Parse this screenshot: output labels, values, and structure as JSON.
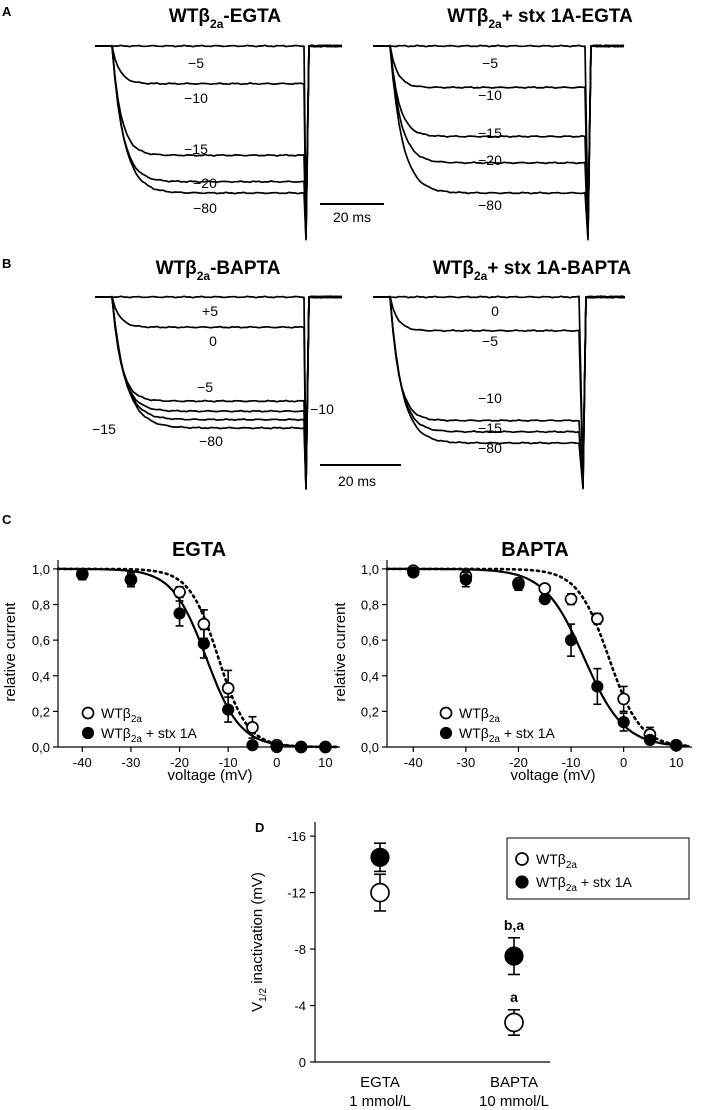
{
  "colors": {
    "ink": "#000000",
    "background": "#ffffff",
    "open_marker": "#ffffff"
  },
  "panels": {
    "A": {
      "letter": "A",
      "scale_bar_label": "20 ms",
      "traces": [
        {
          "title_main": "WTβ",
          "title_sub": "2a",
          "title_rest": "-EGTA",
          "levels": [
            {
              "label": "−5",
              "value": 0.0
            },
            {
              "label": "−10",
              "value": 0.2
            },
            {
              "label": "−15",
              "value": 0.58
            },
            {
              "label": "−20",
              "value": 0.72
            },
            {
              "label": "−80",
              "value": 0.78
            }
          ]
        },
        {
          "title_main": "WTβ",
          "title_sub": "2a",
          "title_rest": "+ stx 1A-EGTA",
          "levels": [
            {
              "label": "−5",
              "value": 0.0
            },
            {
              "label": "−10",
              "value": 0.22
            },
            {
              "label": "−15",
              "value": 0.48
            },
            {
              "label": "−20",
              "value": 0.62
            },
            {
              "label": "−80",
              "value": 0.78
            }
          ]
        }
      ]
    },
    "B": {
      "letter": "B",
      "scale_bar_label": "20 ms",
      "traces": [
        {
          "title_main": "WTβ",
          "title_sub": "2a",
          "title_rest": "-BAPTA",
          "levels": [
            {
              "label": "+5",
              "value": 0.0
            },
            {
              "label": "0",
              "value": 0.18
            },
            {
              "label": "−5",
              "value": 0.62
            },
            {
              "label": "−10",
              "value": 0.68
            },
            {
              "label": "−15",
              "value": 0.73
            },
            {
              "label": "−80",
              "value": 0.78
            }
          ]
        },
        {
          "title_main": "WTβ",
          "title_sub": "2a",
          "title_rest": "+ stx 1A-BAPTA",
          "levels": [
            {
              "label": "0",
              "value": 0.0
            },
            {
              "label": "−5",
              "value": 0.18
            },
            {
              "label": "−10",
              "value": 0.66
            },
            {
              "label": "−15",
              "value": 0.72
            },
            {
              "label": "−80",
              "value": 0.78
            }
          ]
        }
      ]
    },
    "C": {
      "letter": "C"
    },
    "D": {
      "letter": "D"
    }
  },
  "chart_data": [
    {
      "type": "scatter",
      "title": "EGTA",
      "xlabel": "voltage (mV)",
      "ylabel": "relative current",
      "xlim": [
        -45,
        13
      ],
      "ylim": [
        0,
        1.05
      ],
      "x_ticks": [
        -40,
        -30,
        -20,
        -10,
        0,
        10
      ],
      "y_ticks": [
        0,
        0.2,
        0.4,
        0.6,
        0.8,
        1.0
      ],
      "y_tick_labels": [
        "0,0",
        "0,2",
        "0,4",
        "0,6",
        "0,8",
        "1,0"
      ],
      "legend": [
        {
          "marker": "open",
          "text_main": "WTβ",
          "text_sub": "2a",
          "text_rest": ""
        },
        {
          "marker": "filled",
          "text_main": "WTβ",
          "text_sub": "2a",
          "text_rest": " + stx 1A"
        }
      ],
      "legend_position": "bottom-left",
      "series": [
        {
          "marker": "open",
          "fit": "dotted",
          "v_half": -12.0,
          "slope": 3.0,
          "x": [
            -40,
            -30,
            -20,
            -15,
            -10,
            -5,
            0,
            5,
            10
          ],
          "y": [
            0.97,
            0.94,
            0.87,
            0.69,
            0.33,
            0.11,
            0.01,
            0.0,
            0.0
          ],
          "err": [
            0.03,
            0.03,
            0.03,
            0.08,
            0.1,
            0.06,
            0.02,
            0.0,
            0.0
          ]
        },
        {
          "marker": "filled",
          "fit": "solid",
          "v_half": -14.5,
          "slope": 3.5,
          "x": [
            -40,
            -30,
            -20,
            -15,
            -10,
            -5,
            0,
            5,
            10
          ],
          "y": [
            0.97,
            0.94,
            0.75,
            0.58,
            0.21,
            0.01,
            0.0,
            0.0,
            0.0
          ],
          "err": [
            0.03,
            0.04,
            0.07,
            0.08,
            0.07,
            0.01,
            0.0,
            0.0,
            0.0
          ]
        }
      ]
    },
    {
      "type": "scatter",
      "title": "BAPTA",
      "xlabel": "voltage (mV)",
      "ylabel": "relative current",
      "xlim": [
        -45,
        13
      ],
      "ylim": [
        0,
        1.05
      ],
      "x_ticks": [
        -40,
        -30,
        -20,
        -10,
        0,
        10
      ],
      "y_ticks": [
        0,
        0.2,
        0.4,
        0.6,
        0.8,
        1.0
      ],
      "y_tick_labels": [
        "0,0",
        "0,2",
        "0,4",
        "0,6",
        "0,8",
        "1,0"
      ],
      "legend": [
        {
          "marker": "open",
          "text_main": "WTβ",
          "text_sub": "2a",
          "text_rest": ""
        },
        {
          "marker": "filled",
          "text_main": "WTβ",
          "text_sub": "2a",
          "text_rest": " + stx 1A"
        }
      ],
      "legend_position": "bottom-left",
      "series": [
        {
          "marker": "open",
          "fit": "dotted",
          "v_half": -2.8,
          "slope": 3.0,
          "x": [
            -40,
            -30,
            -20,
            -15,
            -10,
            -5,
            0,
            5,
            10
          ],
          "y": [
            0.99,
            0.96,
            0.92,
            0.89,
            0.83,
            0.72,
            0.27,
            0.07,
            0.01
          ],
          "err": [
            0.02,
            0.03,
            0.02,
            0.02,
            0.03,
            0.03,
            0.07,
            0.04,
            0.01
          ]
        },
        {
          "marker": "filled",
          "fit": "solid",
          "v_half": -7.5,
          "slope": 3.8,
          "x": [
            -40,
            -30,
            -20,
            -15,
            -10,
            -5,
            0,
            5,
            10
          ],
          "y": [
            0.98,
            0.94,
            0.91,
            0.83,
            0.6,
            0.34,
            0.14,
            0.04,
            0.01
          ],
          "err": [
            0.02,
            0.04,
            0.03,
            0.02,
            0.09,
            0.1,
            0.05,
            0.02,
            0.01
          ]
        }
      ]
    },
    {
      "type": "scatter",
      "title": "",
      "ylabel_main": "V",
      "ylabel_sub": "1/2",
      "ylabel_rest": " inactivation (mV)",
      "ylim": [
        0,
        -17
      ],
      "y_ticks": [
        0,
        -4,
        -8,
        -12,
        -16
      ],
      "y_tick_labels": [
        "0",
        "-4",
        "-8",
        "-12",
        "-16"
      ],
      "categories": [
        {
          "line1": "EGTA",
          "line2": "1 mmol/L"
        },
        {
          "line1": "BAPTA",
          "line2": "10 mmol/L"
        }
      ],
      "legend": [
        {
          "marker": "open",
          "text_main": "WTβ",
          "text_sub": "2a",
          "text_rest": ""
        },
        {
          "marker": "filled",
          "text_main": "WTβ",
          "text_sub": "2a",
          "text_rest": " + stx 1A"
        }
      ],
      "legend_position": "top-right",
      "series": [
        {
          "marker": "open",
          "values": [
            -12.0,
            -2.8
          ],
          "err": [
            1.3,
            0.9
          ],
          "annotations": [
            "",
            "a"
          ]
        },
        {
          "marker": "filled",
          "values": [
            -14.5,
            -7.5
          ],
          "err": [
            1.0,
            1.3
          ],
          "annotations": [
            "",
            "b,a"
          ]
        }
      ]
    }
  ]
}
